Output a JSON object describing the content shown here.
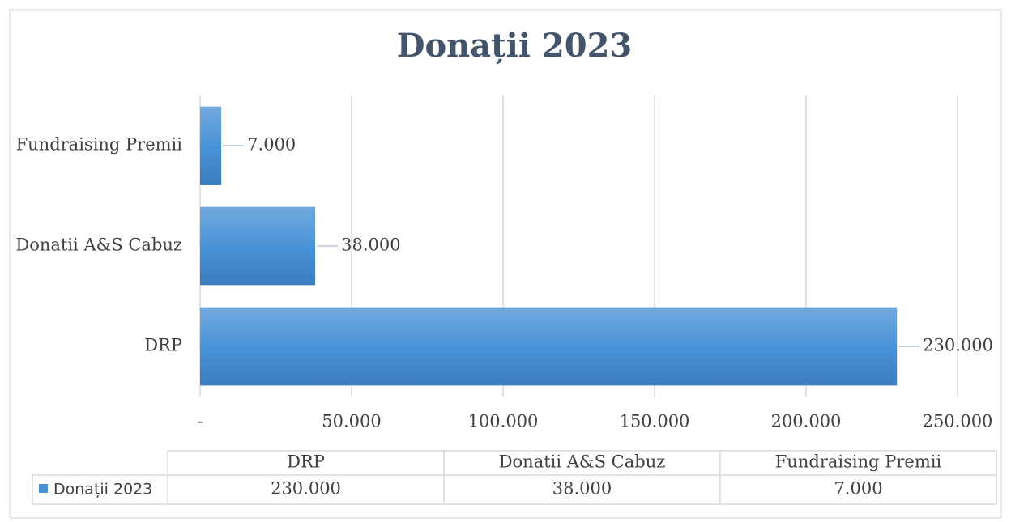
{
  "chart_data": {
    "type": "bar",
    "orientation": "horizontal",
    "title": "Donații 2023",
    "categories": [
      "DRP",
      "Donatii A&S Cabuz",
      "Fundraising Premii"
    ],
    "series": [
      {
        "name": "Donații 2023",
        "color": "#4a8fd2",
        "values": [
          230000,
          38000,
          7000
        ],
        "value_labels": [
          "230.000",
          "38.000",
          "7.000"
        ]
      }
    ],
    "xlim": [
      0,
      250000
    ],
    "xticks": [
      {
        "value": 0,
        "label": "-"
      },
      {
        "value": 50000,
        "label": "50.000"
      },
      {
        "value": 100000,
        "label": "100.000"
      },
      {
        "value": 150000,
        "label": "150.000"
      },
      {
        "value": 200000,
        "label": "200.000"
      },
      {
        "value": 250000,
        "label": "250.000"
      }
    ],
    "grid": true,
    "data_table": true
  }
}
